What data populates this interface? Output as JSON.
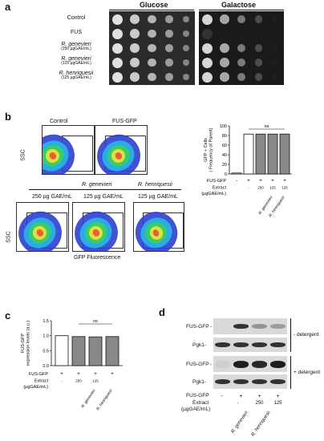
{
  "panel_a": {
    "letter": "a",
    "headers": {
      "glucose": "Glucose",
      "galactose": "Galactose"
    },
    "rows": [
      {
        "name": "Control",
        "sub": ""
      },
      {
        "name": "FUS",
        "sub": ""
      },
      {
        "name": "R. genevieri",
        "sub": "(250  µgGAE/mL)"
      },
      {
        "name": "R. genevieri",
        "sub": "(125 µgGAE/mL)"
      },
      {
        "name": "R. henriquesii",
        "sub": "(125 µgGAE/mL)"
      }
    ]
  },
  "panel_b": {
    "letter": "b",
    "top_titles": {
      "control": "Control",
      "fus_gfp": "FUS-GFP"
    },
    "group_titles": {
      "genevieri": "R. genevieri",
      "henriquesii": "R. henriquesii"
    },
    "dose_titles": [
      "250 µg GAE/mL",
      "125 µg GAE/mL",
      "125 µg GAE/mL"
    ],
    "y_axis": "SSC",
    "x_axis": "GFP Fluorescence"
  },
  "panel_c": {
    "letter": "c"
  },
  "panel_d": {
    "letter": "d",
    "rows": {
      "fus": "FUS-GFP -",
      "pgk": "Pgk1-"
    },
    "minus_detergent": "- detergent",
    "plus_detergent": "+ detergent",
    "row_fus_gfp": "FUS-GFP",
    "row_extract": "Extract",
    "row_extract_unit": "(µgGAE/mL)",
    "fus_marks": [
      "-",
      "+",
      "+",
      "+"
    ],
    "extract_marks": [
      "",
      "-",
      "250",
      "125"
    ],
    "species": [
      "R. genevieri",
      "R. henriquesii"
    ],
    "band_intensity": {
      "minus_fus": [
        0.02,
        0.85,
        0.35,
        0.3
      ],
      "minus_pgk": [
        0.85,
        0.85,
        0.85,
        0.85
      ],
      "plus_fus": [
        0.05,
        0.95,
        0.9,
        0.95
      ],
      "plus_pgk": [
        0.85,
        0.85,
        0.85,
        0.85
      ]
    }
  },
  "chart_data": [
    {
      "type": "bar",
      "panel": "b",
      "categories": [
        "1",
        "2",
        "3",
        "4",
        "5"
      ],
      "values": [
        2,
        83,
        83,
        83,
        83
      ],
      "ylim": [
        0,
        100
      ],
      "yticks": [
        "0",
        "20",
        "40",
        "60",
        "80",
        "100"
      ],
      "ylabel": "GFP + Cells\n( Frequency of Parent)",
      "significance": "ns",
      "bar_colors": [
        "#ffffff",
        "#ffffff",
        "#888888",
        "#888888",
        "#888888"
      ],
      "row_labels": {
        "fus_gfp": "FUS-GFP",
        "extract": "Extract",
        "extract_unit": "(µgGAE/mL)"
      },
      "fus_marks": [
        "-",
        "+",
        "+",
        "+",
        "+"
      ],
      "extract_marks": [
        "",
        "-",
        "250",
        "125",
        "125"
      ],
      "species": [
        "R. genevieri",
        "R. henriquesii"
      ]
    },
    {
      "type": "bar",
      "panel": "c",
      "categories": [
        "1",
        "2",
        "3",
        "4"
      ],
      "values": [
        1.0,
        0.97,
        0.96,
        0.97
      ],
      "ylim": [
        0,
        1.5
      ],
      "yticks": [
        "0.0",
        "0.5",
        "1.0",
        "1.5"
      ],
      "ylabel": "FUS-GFP\nexpression levels (a.u.)",
      "significance": "ns",
      "bar_colors": [
        "#ffffff",
        "#888888",
        "#888888",
        "#888888"
      ],
      "row_labels": {
        "fus_gfp": "FUS-GFP",
        "extract": "Extract",
        "extract_unit": "(µgGAE/mL)"
      },
      "fus_marks": [
        "+",
        "+",
        "+",
        "+"
      ],
      "extract_marks": [
        "-",
        "250",
        "125",
        ""
      ],
      "species": [
        "R. genevieri",
        "R. henriquesii"
      ]
    }
  ]
}
